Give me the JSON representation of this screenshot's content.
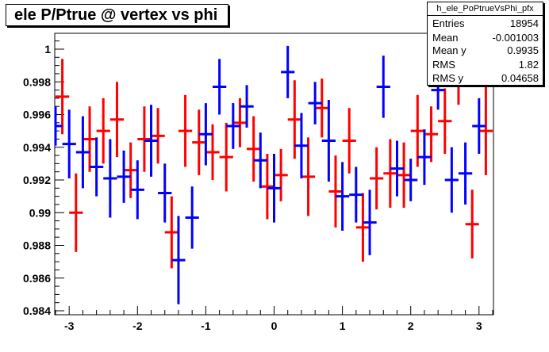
{
  "chart_data": {
    "type": "scatter",
    "title": "ele P/Ptrue @ vertex vs phi",
    "xlabel": "",
    "ylabel": "",
    "xlim": [
      -3.2,
      3.2
    ],
    "ylim": [
      0.984,
      1.001
    ],
    "x_ticks": [
      -3,
      -2,
      -1,
      0,
      1,
      2,
      3
    ],
    "x_tick_labels": [
      "-3",
      "-2",
      "-1",
      "0",
      "1",
      "2",
      "3"
    ],
    "y_ticks": [
      0.984,
      0.986,
      0.988,
      0.99,
      0.992,
      0.994,
      0.996,
      0.998,
      1.0
    ],
    "y_tick_labels": [
      "0.984",
      "0.986",
      "0.988",
      "0.99",
      "0.992",
      "0.994",
      "0.996",
      "0.998",
      "1"
    ],
    "grid": false,
    "series": [
      {
        "color": "#ff0000",
        "points": [
          {
            "x": -3.1,
            "y": 0.9971,
            "err": 0.0023
          },
          {
            "x": -2.9,
            "y": 0.99,
            "err": 0.0024
          },
          {
            "x": -2.7,
            "y": 0.9945,
            "err": 0.002
          },
          {
            "x": -2.5,
            "y": 0.995,
            "err": 0.002
          },
          {
            "x": -2.3,
            "y": 0.9957,
            "err": 0.0023
          },
          {
            "x": -2.1,
            "y": 0.9926,
            "err": 0.0017
          },
          {
            "x": -1.9,
            "y": 0.9945,
            "err": 0.002
          },
          {
            "x": -1.7,
            "y": 0.9947,
            "err": 0.0017
          },
          {
            "x": -1.5,
            "y": 0.9888,
            "err": 0.0022
          },
          {
            "x": -1.3,
            "y": 0.995,
            "err": 0.0022
          },
          {
            "x": -1.1,
            "y": 0.9943,
            "err": 0.002
          },
          {
            "x": -0.9,
            "y": 0.9937,
            "err": 0.0017
          },
          {
            "x": -0.7,
            "y": 0.9934,
            "err": 0.0021
          },
          {
            "x": -0.5,
            "y": 0.9955,
            "err": 0.0015
          },
          {
            "x": -0.3,
            "y": 0.9939,
            "err": 0.002
          },
          {
            "x": -0.1,
            "y": 0.9916,
            "err": 0.002
          },
          {
            "x": 0.1,
            "y": 0.9923,
            "err": 0.0016
          },
          {
            "x": 0.3,
            "y": 0.9957,
            "err": 0.0024
          },
          {
            "x": 0.5,
            "y": 0.9922,
            "err": 0.0024
          },
          {
            "x": 0.7,
            "y": 0.9964,
            "err": 0.0018
          },
          {
            "x": 0.9,
            "y": 0.9913,
            "err": 0.0022
          },
          {
            "x": 1.1,
            "y": 0.9944,
            "err": 0.002
          },
          {
            "x": 1.3,
            "y": 0.9891,
            "err": 0.0021
          },
          {
            "x": 1.5,
            "y": 0.9921,
            "err": 0.0019
          },
          {
            "x": 1.7,
            "y": 0.9924,
            "err": 0.0021
          },
          {
            "x": 1.9,
            "y": 0.9923,
            "err": 0.002
          },
          {
            "x": 2.1,
            "y": 0.995,
            "err": 0.0022
          },
          {
            "x": 2.3,
            "y": 0.9948,
            "err": 0.0017
          },
          {
            "x": 2.5,
            "y": 0.9956,
            "err": 0.002
          },
          {
            "x": 2.7,
            "y": 0.9984,
            "err": 0.0018
          },
          {
            "x": 2.9,
            "y": 0.9893,
            "err": 0.0021
          },
          {
            "x": 3.1,
            "y": 0.995,
            "err": 0.0027
          }
        ]
      },
      {
        "color": "#0000ff",
        "points": [
          {
            "x": -3.2,
            "y": 0.9953,
            "err": 0.0012
          },
          {
            "x": -3.0,
            "y": 0.9942,
            "err": 0.0021
          },
          {
            "x": -2.8,
            "y": 0.9937,
            "err": 0.0022
          },
          {
            "x": -2.6,
            "y": 0.9928,
            "err": 0.0018
          },
          {
            "x": -2.4,
            "y": 0.9921,
            "err": 0.0024
          },
          {
            "x": -2.2,
            "y": 0.9922,
            "err": 0.0016
          },
          {
            "x": -2.0,
            "y": 0.9914,
            "err": 0.0018
          },
          {
            "x": -1.8,
            "y": 0.9944,
            "err": 0.0022
          },
          {
            "x": -1.6,
            "y": 0.9912,
            "err": 0.0018
          },
          {
            "x": -1.4,
            "y": 0.9871,
            "err": 0.0027
          },
          {
            "x": -1.2,
            "y": 0.9897,
            "err": 0.0019
          },
          {
            "x": -1.0,
            "y": 0.9948,
            "err": 0.0019
          },
          {
            "x": -0.8,
            "y": 0.9977,
            "err": 0.0017
          },
          {
            "x": -0.6,
            "y": 0.9953,
            "err": 0.0014
          },
          {
            "x": -0.4,
            "y": 0.9965,
            "err": 0.0013
          },
          {
            "x": -0.2,
            "y": 0.9932,
            "err": 0.0017
          },
          {
            "x": 0.0,
            "y": 0.9915,
            "err": 0.0021
          },
          {
            "x": 0.2,
            "y": 0.9986,
            "err": 0.0016
          },
          {
            "x": 0.4,
            "y": 0.9941,
            "err": 0.002
          },
          {
            "x": 0.6,
            "y": 0.9967,
            "err": 0.0013
          },
          {
            "x": 0.8,
            "y": 0.9944,
            "err": 0.0025
          },
          {
            "x": 1.0,
            "y": 0.991,
            "err": 0.0021
          },
          {
            "x": 1.2,
            "y": 0.9911,
            "err": 0.0017
          },
          {
            "x": 1.4,
            "y": 0.9894,
            "err": 0.002
          },
          {
            "x": 1.6,
            "y": 0.9977,
            "err": 0.0019
          },
          {
            "x": 1.8,
            "y": 0.9927,
            "err": 0.0017
          },
          {
            "x": 2.0,
            "y": 0.992,
            "err": 0.0013
          },
          {
            "x": 2.2,
            "y": 0.9934,
            "err": 0.0017
          },
          {
            "x": 2.4,
            "y": 0.9975,
            "err": 0.0012
          },
          {
            "x": 2.6,
            "y": 0.992,
            "err": 0.002
          },
          {
            "x": 2.8,
            "y": 0.9924,
            "err": 0.0019
          },
          {
            "x": 3.0,
            "y": 0.9953,
            "err": 0.0017
          }
        ]
      }
    ]
  },
  "stats": {
    "name": "h_ele_PoPtrueVsPhi_pfx",
    "rows": [
      {
        "label": "Entries",
        "value": "18954"
      },
      {
        "label": "Mean",
        "value": "-0.001003"
      },
      {
        "label": "Mean y",
        "value": "0.9935"
      },
      {
        "label": "RMS",
        "value": "1.82"
      },
      {
        "label": "RMS y",
        "value": "0.04658"
      }
    ]
  }
}
